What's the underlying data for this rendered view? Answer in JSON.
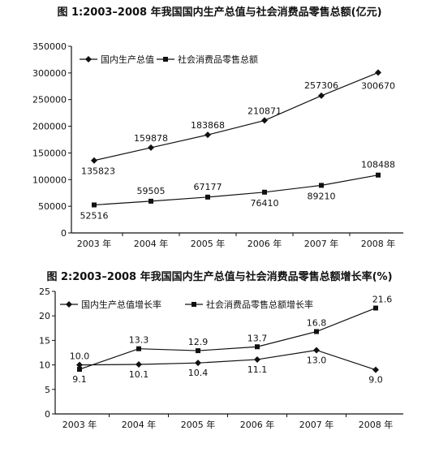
{
  "chart_data": [
    {
      "type": "line",
      "title": "图 1:2003–2008 年我国国内生产总值与社会消费品零售总额(亿元)",
      "categories": [
        "2003 年",
        "2004 年",
        "2005 年",
        "2006 年",
        "2007 年",
        "2008 年"
      ],
      "series": [
        {
          "name": "国内生产总值",
          "marker": "diamond",
          "values": [
            135823,
            159878,
            183868,
            210871,
            257306,
            300670
          ]
        },
        {
          "name": "社会消费品零售总额",
          "marker": "square",
          "values": [
            52516,
            59505,
            67177,
            76410,
            89210,
            108488
          ]
        }
      ],
      "yticks": [
        "0",
        "50000",
        "100000",
        "150000",
        "200000",
        "250000",
        "300000",
        "350000"
      ],
      "ylim": [
        0,
        350000
      ],
      "legend": "top-left",
      "grid": false
    },
    {
      "type": "line",
      "title": "图 2:2003–2008 年我国国内生产总值与社会消费品零售总额增长率(%)",
      "categories": [
        "2003 年",
        "2004 年",
        "2005 年",
        "2006 年",
        "2007 年",
        "2008 年"
      ],
      "series": [
        {
          "name": "国内生产总值增长率",
          "marker": "diamond",
          "values": [
            10.0,
            10.1,
            10.4,
            11.1,
            13.0,
            9.0
          ]
        },
        {
          "name": "社会消费品零售总额增长率",
          "marker": "square",
          "values": [
            9.1,
            13.3,
            12.9,
            13.7,
            16.8,
            21.6
          ]
        }
      ],
      "value_labels": [
        [
          "10.0",
          "10.1",
          "10.4",
          "11.1",
          "13.0",
          "9.0"
        ],
        [
          "9.1",
          "13.3",
          "12.9",
          "13.7",
          "16.8",
          "21.6"
        ]
      ],
      "yticks": [
        "0",
        "5",
        "10",
        "15",
        "20",
        "25"
      ],
      "ylim": [
        0,
        25
      ],
      "legend": "top-left",
      "grid": false
    }
  ]
}
